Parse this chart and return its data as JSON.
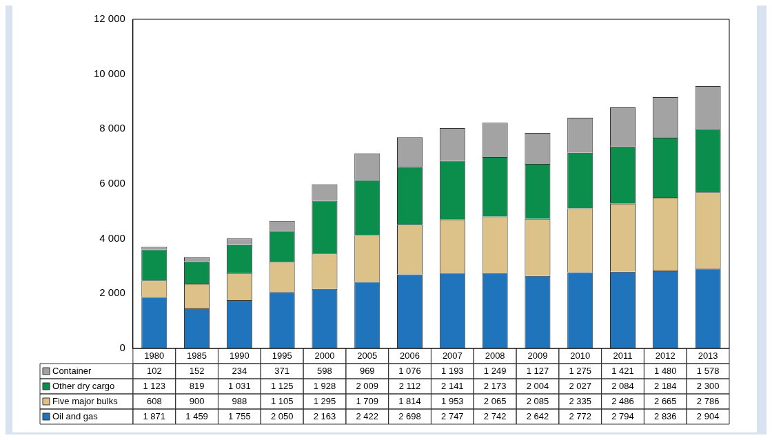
{
  "chart_data": {
    "type": "bar",
    "stacked": true,
    "legend": "bottom",
    "grid": false,
    "categories": [
      "1980",
      "1985",
      "1990",
      "1995",
      "2000",
      "2005",
      "2006",
      "2007",
      "2008",
      "2009",
      "2010",
      "2011",
      "2012",
      "2013"
    ],
    "ylim": [
      0,
      12000
    ],
    "yticks": [
      0,
      {
        "value": 2000,
        "label": "2 000"
      },
      {
        "value": 4000,
        "label": "4 000"
      },
      {
        "value": 6000,
        "label": "6 000"
      },
      {
        "value": 8000,
        "label": "8 000"
      },
      {
        "value": 10000,
        "label": "10 000"
      },
      {
        "value": 12000,
        "label": "12 000"
      }
    ],
    "series": [
      {
        "name": "Oil and gas",
        "color": "#1f74bc",
        "values": [
          1871,
          1459,
          1755,
          2050,
          2163,
          2422,
          2698,
          2747,
          2742,
          2642,
          2772,
          2794,
          2836,
          2904
        ],
        "value_labels": [
          "1 871",
          "1 459",
          "1 755",
          "2 050",
          "2 163",
          "2 422",
          "2 698",
          "2 747",
          "2 742",
          "2 642",
          "2 772",
          "2 794",
          "2 836",
          "2 904"
        ]
      },
      {
        "name": "Five major bulks",
        "color": "#dcc289",
        "values": [
          608,
          900,
          988,
          1105,
          1295,
          1709,
          1814,
          1953,
          2065,
          2085,
          2335,
          2486,
          2665,
          2786
        ],
        "value_labels": [
          "608",
          "900",
          "988",
          "1 105",
          "1 295",
          "1 709",
          "1 814",
          "1 953",
          "2 065",
          "2 085",
          "2 335",
          "2 486",
          "2 665",
          "2 786"
        ]
      },
      {
        "name": "Other dry cargo",
        "color": "#0b8d4c",
        "values": [
          1123,
          819,
          1031,
          1125,
          1928,
          2009,
          2112,
          2141,
          2173,
          2004,
          2027,
          2084,
          2184,
          2300
        ],
        "value_labels": [
          "1 123",
          "819",
          "1 031",
          "1 125",
          "1 928",
          "2 009",
          "2 112",
          "2 141",
          "2 173",
          "2 004",
          "2 027",
          "2 084",
          "2 184",
          "2 300"
        ]
      },
      {
        "name": "Container",
        "color": "#a3a3a3",
        "values": [
          102,
          152,
          234,
          371,
          598,
          969,
          1076,
          1193,
          1249,
          1127,
          1275,
          1421,
          1480,
          1578
        ],
        "value_labels": [
          "102",
          "152",
          "234",
          "371",
          "598",
          "969",
          "1 076",
          "1 193",
          "1 249",
          "1 127",
          "1 275",
          "1 421",
          "1 480",
          "1 578"
        ]
      }
    ]
  }
}
